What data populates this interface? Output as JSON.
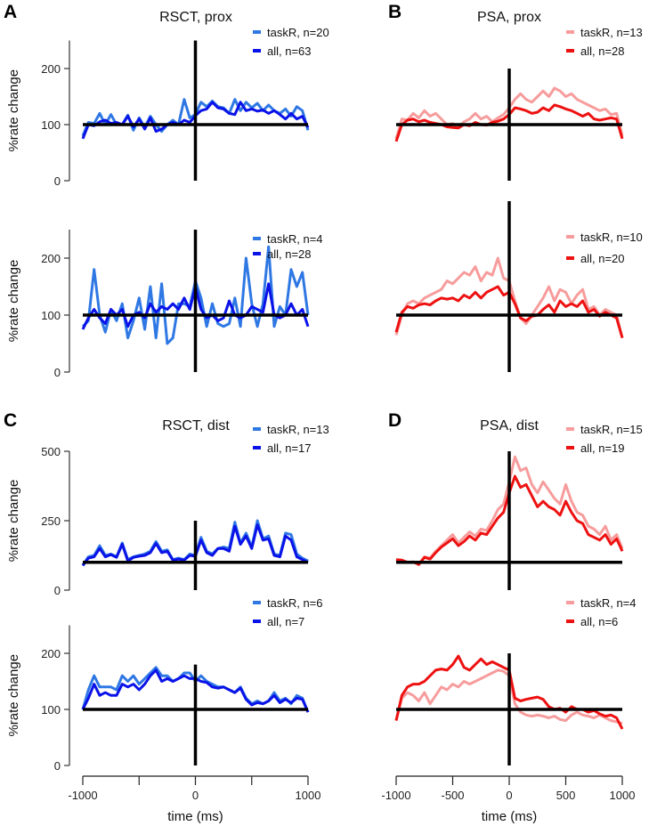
{
  "colors": {
    "taskR_blue": "#2f78e4",
    "all_blue": "#0a12e8",
    "taskR_red": "#f79c9c",
    "all_red": "#ee1111",
    "axis": "#000000"
  },
  "chart_data": {
    "type": "line",
    "x_label": "time (ms)",
    "y_label": "%rate change",
    "x_range": [
      -1000,
      1000
    ],
    "x_ticks_left": [
      -1000,
      -500,
      0,
      500,
      1000
    ],
    "x_tick_labels_left": [
      "-1000",
      "0",
      "1000"
    ],
    "x_tick_labels_right": [
      "-1000",
      "-500",
      "0",
      "500",
      "1000"
    ],
    "baseline": 100,
    "panels": [
      {
        "letter": "A",
        "title": "RSCT, prox",
        "ylim": [
          0,
          250
        ],
        "yticks": [
          "0",
          "100",
          "200"
        ],
        "series": [
          {
            "name": "taskR, n=20",
            "values": [
              80,
              104,
              102,
              120,
              100,
              118,
              100,
              100,
              117,
              90,
              112,
              95,
              115,
              100,
              88,
              100,
              108,
              100,
              145,
              112,
              118,
              140,
              132,
              142,
              132,
              130,
              120,
              145,
              125,
              140,
              130,
              138,
              125,
              135,
              125,
              120,
              128,
              115,
              132,
              125,
              90
            ]
          },
          {
            "name": "all, n=63",
            "values": [
              75,
              100,
              98,
              105,
              108,
              102,
              104,
              100,
              115,
              96,
              110,
              92,
              112,
              88,
              92,
              100,
              104,
              100,
              108,
              104,
              116,
              125,
              128,
              140,
              130,
              128,
              120,
              118,
              140,
              125,
              128,
              124,
              126,
              120,
              125,
              118,
              110,
              120,
              110,
              115,
              95
            ]
          }
        ]
      },
      {
        "letter": "",
        "title": "",
        "ylim": [
          0,
          250
        ],
        "yticks": [
          "0",
          "100",
          "200"
        ],
        "series": [
          {
            "name": "taskR, n=4",
            "values": [
              80,
              90,
              180,
              100,
              70,
              110,
              90,
              120,
              60,
              90,
              130,
              75,
              150,
              60,
              155,
              50,
              60,
              120,
              120,
              115,
              160,
              130,
              80,
              120,
              85,
              80,
              85,
              130,
              80,
              200,
              120,
              80,
              120,
              220,
              80,
              115,
              100,
              180,
              150,
              175,
              100
            ]
          },
          {
            "name": "all, n=28",
            "values": [
              75,
              95,
              110,
              95,
              85,
              110,
              100,
              110,
              80,
              100,
              105,
              95,
              120,
              105,
              115,
              110,
              120,
              110,
              130,
              110,
              150,
              110,
              95,
              100,
              90,
              95,
              125,
              100,
              95,
              100,
              115,
              110,
              105,
              155,
              100,
              95,
              100,
              120,
              100,
              110,
              80
            ]
          }
        ]
      },
      {
        "letter": "B",
        "title": "PSA, prox",
        "ylim": [
          0,
          250
        ],
        "yticks": [],
        "series": [
          {
            "name": "taskR, n=13",
            "values": [
              75,
              110,
              108,
              120,
              112,
              125,
              115,
              120,
              110,
              100,
              102,
              95,
              105,
              110,
              120,
              110,
              115,
              105,
              112,
              118,
              130,
              145,
              155,
              145,
              140,
              150,
              160,
              150,
              165,
              160,
              150,
              155,
              145,
              140,
              135,
              130,
              125,
              128,
              118,
              120,
              80
            ]
          },
          {
            "name": "all, n=28",
            "values": [
              70,
              100,
              108,
              110,
              105,
              108,
              104,
              102,
              100,
              96,
              95,
              94,
              100,
              98,
              104,
              100,
              99,
              104,
              106,
              110,
              118,
              130,
              128,
              125,
              120,
              122,
              130,
              125,
              135,
              132,
              128,
              125,
              120,
              115,
              120,
              110,
              108,
              110,
              112,
              110,
              75
            ]
          }
        ]
      },
      {
        "letter": "",
        "title": "",
        "ylim": [
          0,
          300
        ],
        "yticks": [],
        "series": [
          {
            "name": "taskR, n=10",
            "values": [
              65,
              100,
              120,
              125,
              120,
              130,
              135,
              140,
              145,
              160,
              155,
              165,
              175,
              170,
              185,
              160,
              175,
              170,
              200,
              165,
              160,
              125,
              95,
              85,
              100,
              115,
              130,
              150,
              125,
              145,
              140,
              120,
              135,
              145,
              110,
              115,
              100,
              110,
              105,
              100,
              60
            ]
          },
          {
            "name": "all, n=20",
            "values": [
              70,
              105,
              115,
              112,
              118,
              120,
              118,
              125,
              130,
              128,
              130,
              125,
              135,
              130,
              140,
              130,
              140,
              145,
              150,
              135,
              140,
              120,
              95,
              90,
              98,
              100,
              110,
              118,
              105,
              125,
              115,
              120,
              115,
              125,
              105,
              110,
              98,
              105,
              100,
              95,
              60
            ]
          }
        ]
      },
      {
        "letter": "C",
        "title": "RSCT, dist",
        "ylim": [
          0,
          500
        ],
        "yticks": [
          "0",
          "250",
          "500"
        ],
        "series": [
          {
            "name": "taskR, n=13",
            "values": [
              90,
              120,
              125,
              160,
              125,
              130,
              120,
              170,
              110,
              120,
              125,
              130,
              140,
              175,
              140,
              145,
              110,
              115,
              110,
              130,
              125,
              190,
              140,
              130,
              150,
              155,
              150,
              245,
              170,
              205,
              155,
              250,
              185,
              195,
              130,
              125,
              205,
              200,
              130,
              115,
              105
            ]
          },
          {
            "name": "all, n=17",
            "values": [
              88,
              115,
              120,
              150,
              120,
              128,
              118,
              165,
              105,
              118,
              122,
              125,
              135,
              168,
              135,
              140,
              108,
              112,
              108,
              125,
              122,
              180,
              135,
              125,
              150,
              150,
              140,
              230,
              165,
              195,
              150,
              235,
              180,
              185,
              125,
              120,
              195,
              180,
              120,
              110,
              100
            ]
          }
        ]
      },
      {
        "letter": "",
        "title": "",
        "ylim": [
          0,
          250
        ],
        "yticks": [
          "0",
          "100",
          "200"
        ],
        "series": [
          {
            "name": "taskR, n=6",
            "values": [
              100,
              135,
              160,
              140,
              140,
              140,
              135,
              160,
              150,
              160,
              145,
              155,
              165,
              175,
              160,
              160,
              150,
              155,
              165,
              165,
              150,
              160,
              150,
              145,
              140,
              140,
              135,
              130,
              140,
              120,
              110,
              115,
              110,
              115,
              130,
              115,
              120,
              110,
              125,
              120,
              95
            ]
          },
          {
            "name": "all, n=7",
            "values": [
              100,
              120,
              145,
              125,
              130,
              125,
              125,
              145,
              140,
              145,
              135,
              145,
              160,
              170,
              150,
              155,
              150,
              155,
              160,
              155,
              155,
              150,
              148,
              140,
              138,
              140,
              135,
              130,
              138,
              118,
              108,
              112,
              110,
              115,
              125,
              112,
              118,
              112,
              120,
              118,
              95
            ]
          }
        ]
      },
      {
        "letter": "D",
        "title": "PSA, dist",
        "ylim": [
          0,
          500
        ],
        "yticks": [],
        "series": [
          {
            "name": "taskR, n=15",
            "values": [
              110,
              105,
              102,
              100,
              95,
              120,
              115,
              140,
              160,
              180,
              200,
              170,
              190,
              210,
              195,
              220,
              215,
              250,
              290,
              310,
              390,
              480,
              430,
              440,
              380,
              350,
              390,
              360,
              330,
              310,
              380,
              320,
              280,
              270,
              230,
              220,
              200,
              230,
              180,
              200,
              150
            ]
          },
          {
            "name": "all, n=19",
            "values": [
              110,
              108,
              100,
              102,
              92,
              118,
              112,
              135,
              155,
              170,
              185,
              160,
              175,
              195,
              180,
              205,
              200,
              230,
              260,
              280,
              350,
              410,
              370,
              380,
              340,
              300,
              320,
              300,
              290,
              270,
              320,
              280,
              250,
              240,
              200,
              190,
              180,
              200,
              165,
              185,
              140
            ]
          }
        ]
      },
      {
        "letter": "",
        "title": "",
        "ylim": [
          0,
          250
        ],
        "yticks": [],
        "series": [
          {
            "name": "taskR, n=4",
            "values": [
              80,
              120,
              130,
              125,
              115,
              130,
              110,
              125,
              140,
              135,
              145,
              140,
              150,
              145,
              150,
              155,
              160,
              165,
              170,
              168,
              160,
              110,
              95,
              90,
              88,
              90,
              88,
              85,
              88,
              82,
              80,
              90,
              95,
              90,
              88,
              85,
              90,
              85,
              80,
              78,
              75
            ]
          },
          {
            "name": "all, n=6",
            "values": [
              80,
              125,
              140,
              145,
              145,
              150,
              160,
              170,
              172,
              170,
              180,
              195,
              175,
              170,
              180,
              190,
              180,
              185,
              180,
              175,
              170,
              120,
              115,
              118,
              120,
              122,
              118,
              105,
              100,
              102,
              95,
              105,
              100,
              100,
              95,
              98,
              92,
              88,
              90,
              85,
              65
            ]
          }
        ]
      }
    ]
  }
}
